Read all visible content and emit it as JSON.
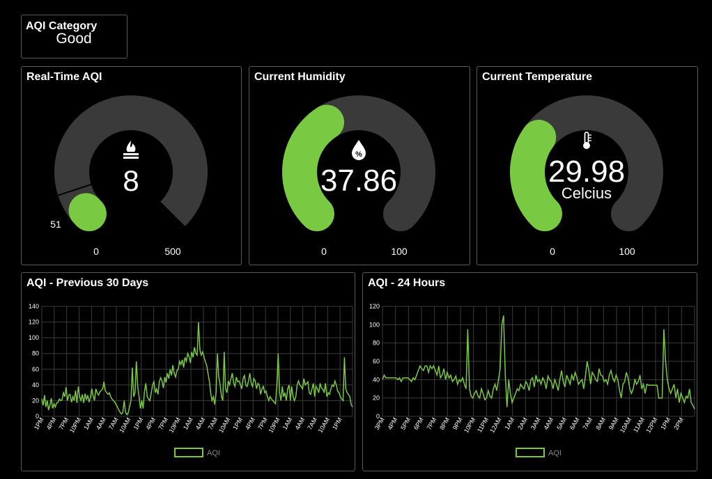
{
  "category": {
    "title": "AQI Category",
    "value": "Good"
  },
  "gauges": {
    "aqi": {
      "title": "Real-Time AQI",
      "value": "8",
      "min": "0",
      "max": "500",
      "marker": "51",
      "fraction": 0.016,
      "marker_fraction": 0.102,
      "icon": "fire-icon"
    },
    "humidity": {
      "title": "Current Humidity",
      "value": "37.86",
      "min": "0",
      "max": "100",
      "fraction": 0.3786,
      "icon": "humidity-drop-icon"
    },
    "temperature": {
      "title": "Current Temperature",
      "value": "29.98",
      "unit": "Celcius",
      "min": "0",
      "max": "100",
      "fraction": 0.2998,
      "icon": "thermometer-icon"
    }
  },
  "colors": {
    "accent": "#7ac943",
    "track": "#3a3a3a",
    "grid": "#3c3c3c"
  },
  "chart_data": [
    {
      "type": "line",
      "title": "AQI - Previous 30 Days",
      "legend": "AQI",
      "ylim": [
        0,
        140
      ],
      "yticks": [
        0,
        20,
        40,
        60,
        80,
        100,
        120,
        140
      ],
      "xticks": [
        "1PM",
        "4PM",
        "7PM",
        "10PM",
        "1AM",
        "4AM",
        "7AM",
        "10AM",
        "1PM",
        "4PM",
        "7PM",
        "10PM",
        "1AM",
        "4AM",
        "7AM",
        "10AM",
        "1PM",
        "4PM",
        "7PM",
        "10PM",
        "1AM",
        "4AM",
        "7AM",
        "10AM",
        "1PM"
      ],
      "values": [
        22,
        14,
        27,
        12,
        20,
        8,
        14,
        23,
        10,
        16,
        12,
        17,
        18,
        22,
        20,
        21,
        30,
        25,
        37,
        20,
        27,
        28,
        18,
        25,
        20,
        33,
        17,
        38,
        25,
        20,
        28,
        17,
        29,
        21,
        27,
        18,
        24,
        35,
        26,
        20,
        35,
        30,
        27,
        31,
        33,
        35,
        44,
        33,
        30,
        28,
        30,
        25,
        22,
        20,
        18,
        15,
        12,
        8,
        5,
        3,
        5,
        20,
        5,
        2,
        5,
        12,
        20,
        62,
        25,
        30,
        70,
        38,
        25,
        10,
        20,
        10,
        32,
        42,
        25,
        22,
        20,
        30,
        40,
        44,
        30,
        35,
        28,
        44,
        49,
        45,
        36,
        50,
        43,
        55,
        48,
        60,
        52,
        65,
        55,
        50,
        58,
        60,
        70,
        66,
        72,
        62,
        75,
        70,
        80,
        76,
        68,
        82,
        75,
        88,
        80,
        78,
        120,
        85,
        78,
        82,
        76,
        70,
        65,
        55,
        45,
        30,
        20,
        25,
        15,
        30,
        80,
        50,
        40,
        25,
        20,
        82,
        35,
        30,
        45,
        40,
        48,
        55,
        42,
        38,
        50,
        44,
        45,
        40,
        35,
        48,
        52,
        40,
        38,
        45,
        55,
        42,
        38,
        48,
        45,
        35,
        42,
        40,
        28,
        35,
        38,
        30,
        32,
        25,
        20,
        25,
        22,
        20,
        18,
        16,
        40,
        80,
        30,
        20,
        38,
        25,
        30,
        20,
        35,
        40,
        20,
        38,
        25,
        20,
        25,
        40,
        45,
        40,
        38,
        35,
        48,
        40,
        42,
        44,
        30,
        28,
        35,
        42,
        25,
        38,
        35,
        30,
        42,
        36,
        35,
        30,
        42,
        25,
        30,
        28,
        35,
        40,
        38,
        45,
        40,
        32,
        30,
        25,
        22,
        20,
        75,
        35,
        30,
        28,
        25,
        15,
        12
      ]
    },
    {
      "type": "line",
      "title": "AQI - 24 Hours",
      "legend": "AQI",
      "ylim": [
        0,
        120
      ],
      "yticks": [
        0,
        20,
        40,
        60,
        80,
        100,
        120
      ],
      "xticks": [
        "3PM",
        "4PM",
        "5PM",
        "6PM",
        "7PM",
        "8PM",
        "9PM",
        "10PM",
        "11PM",
        "12AM",
        "1AM",
        "2AM",
        "3AM",
        "4AM",
        "5AM",
        "6AM",
        "7AM",
        "8AM",
        "9AM",
        "10AM",
        "11AM",
        "12PM",
        "1PM",
        "2PM"
      ],
      "values": [
        40,
        45,
        42,
        42,
        42,
        42,
        42,
        42,
        42,
        40,
        42,
        38,
        42,
        42,
        42,
        42,
        40,
        38,
        42,
        40,
        45,
        50,
        55,
        52,
        50,
        55,
        55,
        48,
        55,
        52,
        55,
        50,
        45,
        55,
        42,
        45,
        52,
        40,
        48,
        42,
        45,
        38,
        40,
        44,
        35,
        40,
        38,
        42,
        35,
        30,
        95,
        30,
        22,
        20,
        25,
        28,
        22,
        20,
        30,
        25,
        18,
        20,
        28,
        22,
        20,
        30,
        35,
        28,
        40,
        52,
        100,
        110,
        45,
        10,
        40,
        25,
        15,
        20,
        25,
        30,
        28,
        35,
        32,
        30,
        38,
        35,
        28,
        40,
        42,
        32,
        45,
        38,
        40,
        35,
        42,
        38,
        30,
        44,
        40,
        38,
        30,
        40,
        35,
        28,
        40,
        50,
        38,
        32,
        45,
        40,
        35,
        45,
        40,
        48,
        42,
        35,
        38,
        40,
        30,
        44,
        60,
        50,
        35,
        48,
        45,
        40,
        38,
        52,
        45,
        44,
        38,
        40,
        35,
        45,
        50,
        42,
        38,
        45,
        40,
        28,
        20,
        35,
        38,
        48,
        42,
        30,
        25,
        30,
        40,
        35,
        38,
        45,
        30,
        35,
        25,
        35,
        34,
        34,
        34,
        34,
        34,
        34,
        20,
        20,
        20,
        95,
        60,
        40,
        30,
        25,
        30,
        35,
        20,
        30,
        15,
        25,
        20,
        15,
        22,
        20,
        30,
        15,
        12,
        8
      ]
    }
  ]
}
